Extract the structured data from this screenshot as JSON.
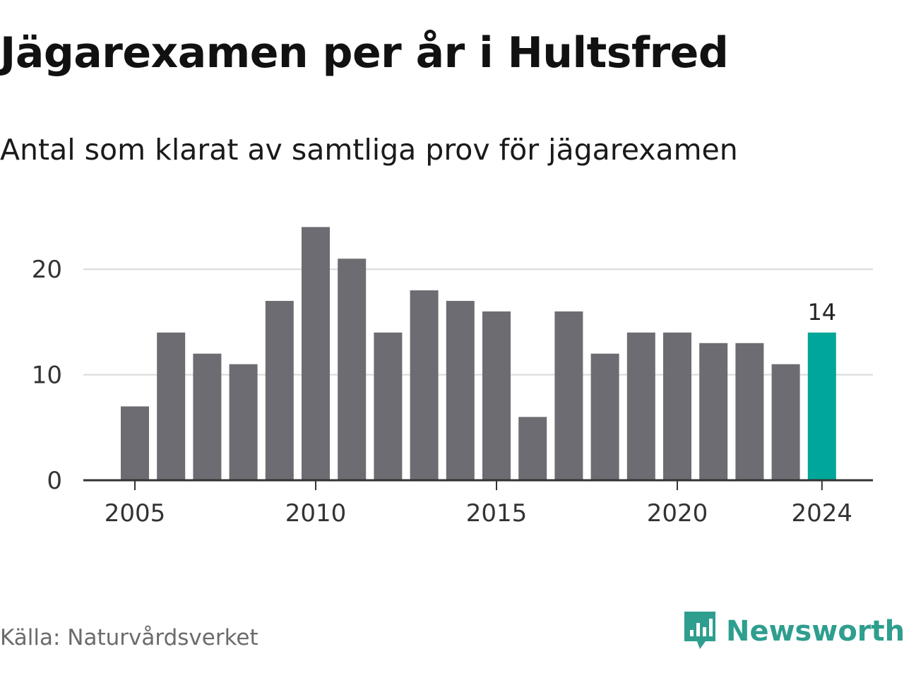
{
  "title": "Jägarexamen per år i Hultsfred",
  "subtitle": "Antal som klarat av samtliga prov för jägarexamen",
  "source": "Källa: Naturvårdsverket",
  "brand": {
    "name": "Newsworthy",
    "icon": "newsworthy-logo-icon",
    "color": "#2e9e8f"
  },
  "colors": {
    "bar": "#6d6c72",
    "highlight": "#00a69a",
    "grid": "#d9d9d9",
    "axis": "#333333"
  },
  "chart_data": {
    "type": "bar",
    "categories": [
      "2005",
      "2006",
      "2007",
      "2008",
      "2009",
      "2010",
      "2011",
      "2012",
      "2013",
      "2014",
      "2015",
      "2016",
      "2017",
      "2018",
      "2019",
      "2020",
      "2021",
      "2022",
      "2023",
      "2024"
    ],
    "values": [
      7,
      14,
      12,
      11,
      17,
      24,
      21,
      14,
      18,
      17,
      16,
      6,
      16,
      12,
      14,
      14,
      13,
      13,
      11,
      14
    ],
    "highlight_index": 19,
    "data_labels": [
      {
        "index": 19,
        "text": "14"
      }
    ],
    "x_ticks": [
      "2005",
      "2010",
      "2015",
      "2020",
      "2024"
    ],
    "y_ticks": [
      0,
      10,
      20
    ],
    "ylim": [
      0,
      24.5
    ],
    "grid": true,
    "xlabel": "",
    "ylabel": ""
  }
}
